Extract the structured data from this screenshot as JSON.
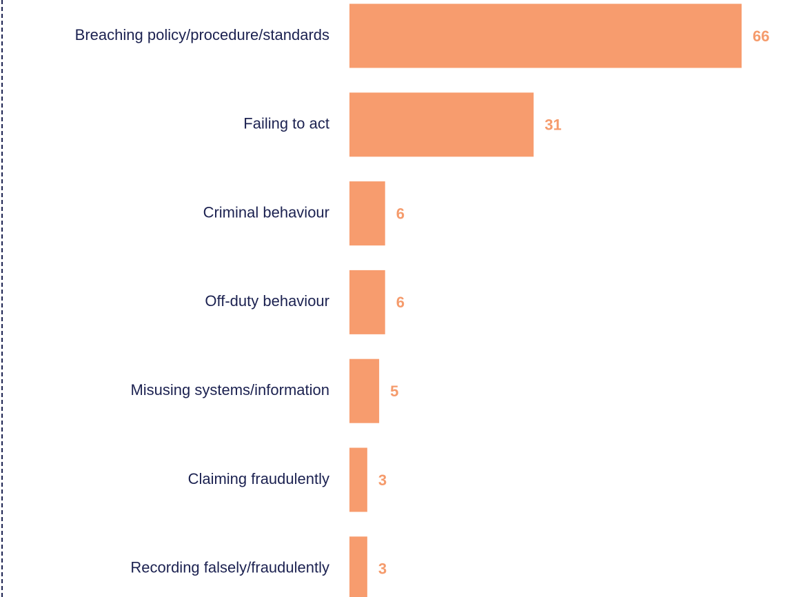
{
  "chart_data": {
    "type": "bar",
    "orientation": "horizontal",
    "categories": [
      "Breaching policy/procedure/standards",
      "Failing to act",
      "Criminal behaviour",
      "Off-duty behaviour",
      "Misusing systems/information",
      "Claiming fraudulently",
      "Recording falsely/fraudulently"
    ],
    "values": [
      66,
      31,
      6,
      6,
      5,
      3,
      3
    ],
    "color": "#f79c6e"
  }
}
